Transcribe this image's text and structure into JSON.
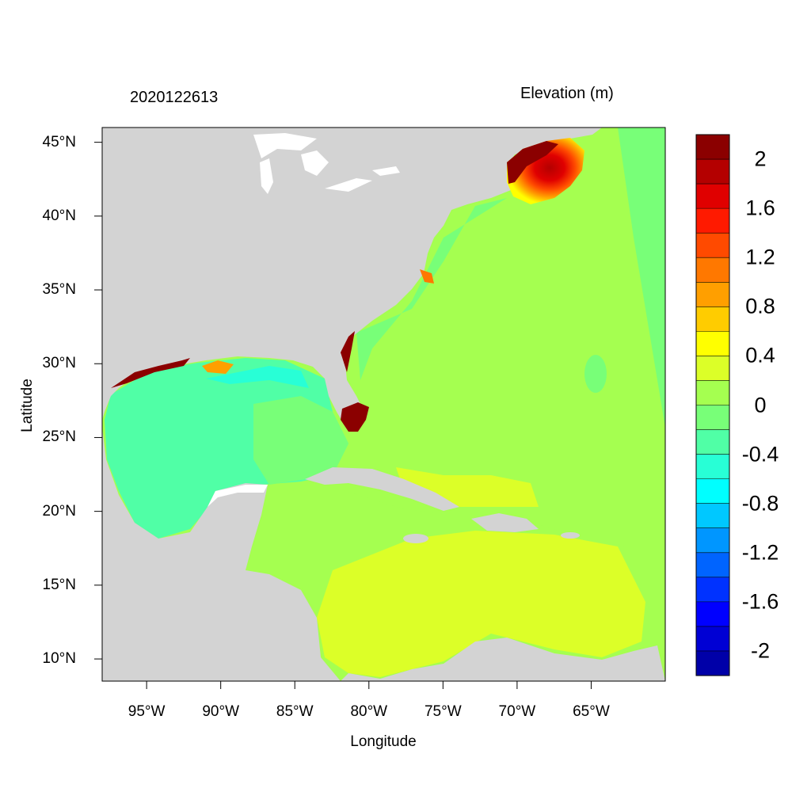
{
  "header": {
    "timestamp": "2020122613",
    "units": "Elevation (m)"
  },
  "axes": {
    "xlabel": "Longitude",
    "ylabel": "Latitude",
    "x_ticks": [
      "95°W",
      "90°W",
      "85°W",
      "80°W",
      "75°W",
      "70°W",
      "65°W"
    ],
    "y_ticks": [
      "45°N",
      "40°N",
      "35°N",
      "30°N",
      "25°N",
      "20°N",
      "15°N",
      "10°N"
    ],
    "x_tick_values": [
      -95,
      -90,
      -85,
      -80,
      -75,
      -70,
      -65
    ],
    "y_tick_values": [
      45,
      40,
      35,
      30,
      25,
      20,
      15,
      10
    ],
    "xlim": [
      -98,
      -60
    ],
    "ylim": [
      8.5,
      46
    ]
  },
  "colorbar": {
    "labels": [
      "2",
      "1.6",
      "1.2",
      "0.8",
      "0.4",
      "0",
      "-0.4",
      "-0.8",
      "-1.2",
      "-1.6",
      "-2"
    ],
    "colors": [
      "#8b0000",
      "#b40000",
      "#e00000",
      "#ff1a00",
      "#ff4a00",
      "#ff7800",
      "#ff9f00",
      "#ffcc00",
      "#ffff00",
      "#dcff28",
      "#a5ff50",
      "#78ff78",
      "#50ffa6",
      "#28ffd6",
      "#00ffff",
      "#00c8ff",
      "#0096ff",
      "#0064ff",
      "#0032ff",
      "#0000ff",
      "#0000d4",
      "#0000a8"
    ]
  },
  "colors": {
    "land": "#d3d3d3",
    "lakes": "#ffffff"
  }
}
